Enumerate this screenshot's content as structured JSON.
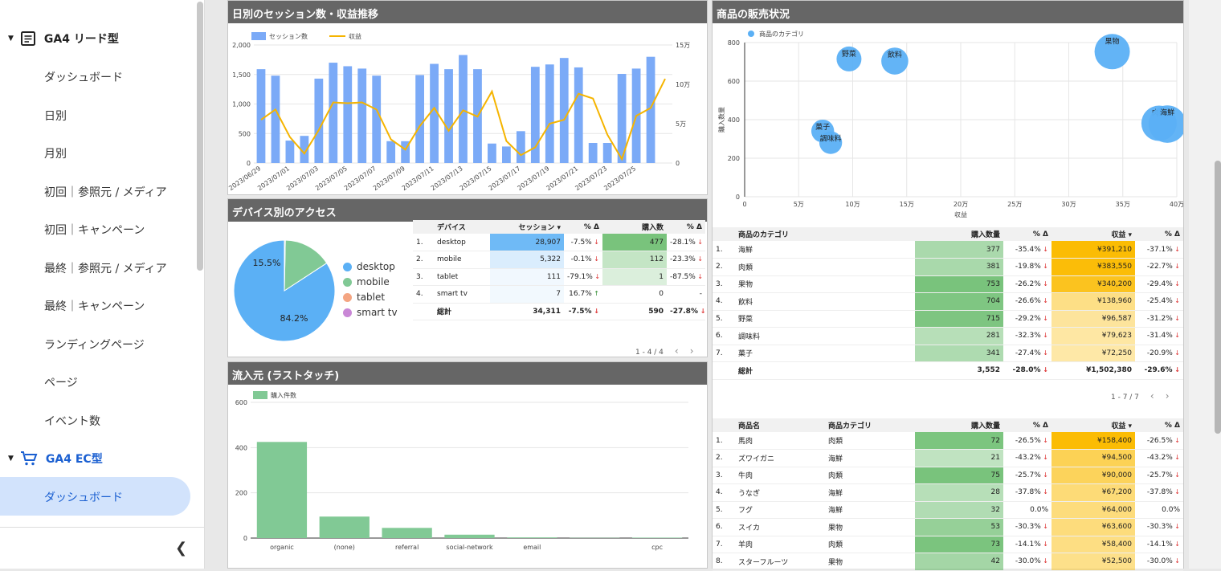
{
  "sidebar": {
    "group1": "GA4 リード型",
    "group1_items": [
      "ダッシュボード",
      "日別",
      "月別",
      "初回｜参照元 / メディア",
      "初回｜キャンペーン",
      "最終｜参照元 / メディア",
      "最終｜キャンペーン",
      "ランディングページ",
      "ページ",
      "イベント数"
    ],
    "group2": "GA4 EC型",
    "group2_items": [
      "ダッシュボード"
    ],
    "collapse_icon": "chevron-left-icon"
  },
  "colors": {
    "bar": "#7baaf7",
    "line": "#f5b400",
    "green": "#81c995",
    "blue": "#5bb0f5",
    "accent": "#1a5fd1",
    "highlight": "#d2e3fc"
  },
  "panel_daily": {
    "title": "日別のセッション数・収益推移"
  },
  "panel_device": {
    "title": "デバイス別のアクセス"
  },
  "panel_source": {
    "title": "流入元 (ラストタッチ)"
  },
  "panel_products": {
    "title": "商品の販売状況"
  },
  "chart_data": [
    {
      "type": "bar+line",
      "title": "日別のセッション数・収益推移",
      "x": [
        "2023/06/29",
        "2023/06/30",
        "2023/07/01",
        "2023/07/02",
        "2023/07/03",
        "2023/07/04",
        "2023/07/05",
        "2023/07/06",
        "2023/07/07",
        "2023/07/08",
        "2023/07/09",
        "2023/07/10",
        "2023/07/11",
        "2023/07/12",
        "2023/07/13",
        "2023/07/14",
        "2023/07/15",
        "2023/07/16",
        "2023/07/17",
        "2023/07/18",
        "2023/07/19",
        "2023/07/20",
        "2023/07/21",
        "2023/07/22",
        "2023/07/23",
        "2023/07/24",
        "2023/07/25",
        "2023/07/26",
        "2023/07/27"
      ],
      "x_tick_labels": [
        "2023/06/29",
        "2023/07/01",
        "2023/07/03",
        "2023/07/05",
        "2023/07/07",
        "2023/07/09",
        "2023/07/11",
        "2023/07/13",
        "2023/07/15",
        "2023/07/17",
        "2023/07/19",
        "2023/07/21",
        "2023/07/23",
        "2023/07/25"
      ],
      "series": [
        {
          "name": "セッション数",
          "type": "bar",
          "axis": "left",
          "values": [
            1590,
            1480,
            380,
            460,
            1430,
            1700,
            1640,
            1600,
            1480,
            370,
            370,
            1490,
            1680,
            1590,
            1830,
            1590,
            330,
            280,
            540,
            1630,
            1670,
            1780,
            1620,
            340,
            340,
            1510,
            1600,
            1800,
            null
          ]
        },
        {
          "name": "収益",
          "type": "line",
          "axis": "right",
          "values": [
            55000,
            68000,
            33000,
            12000,
            42000,
            77000,
            76000,
            77000,
            68000,
            30000,
            17000,
            47000,
            70000,
            41000,
            67000,
            59000,
            91000,
            28000,
            10000,
            20000,
            50000,
            55000,
            88000,
            82000,
            36000,
            5000,
            60000,
            70000,
            107000
          ]
        }
      ],
      "yleft": {
        "ticks": [
          "0",
          "500",
          "1,000",
          "1,500",
          "2,000"
        ],
        "lim": [
          0,
          2000
        ]
      },
      "yright": {
        "ticks": [
          "0",
          "5万",
          "10万",
          "15万"
        ],
        "lim": [
          0,
          150000
        ]
      }
    },
    {
      "type": "pie",
      "title": "デバイス別のアクセス",
      "slices": [
        {
          "label": "desktop",
          "value": 84.2,
          "color": "#5bb0f5"
        },
        {
          "label": "mobile",
          "value": 15.5,
          "color": "#81c995"
        },
        {
          "label": "tablet",
          "value": 0.3,
          "color": "#f4a582"
        },
        {
          "label": "smart tv",
          "value": 0.0,
          "color": "#c987d6"
        }
      ],
      "labels_shown": [
        "84.2%",
        "15.5%"
      ]
    },
    {
      "type": "bar",
      "title": "流入元 (ラストタッチ)",
      "series": [
        {
          "name": "購入件数",
          "values": [
            425,
            95,
            45,
            15,
            3,
            1,
            2
          ]
        }
      ],
      "categories": [
        "organic",
        "(none)",
        "referral",
        "social-network",
        "email",
        "",
        "cpc"
      ],
      "yticks": [
        "0",
        "200",
        "400",
        "600"
      ],
      "ylim": [
        0,
        600
      ]
    },
    {
      "type": "scatter",
      "title": "商品の販売状況",
      "legend": "商品のカテゴリ",
      "xlabel": "収益",
      "ylabel": "購入数量",
      "xticks": [
        "0",
        "5万",
        "10万",
        "15万",
        "20万",
        "25万",
        "30万",
        "35万",
        "40万"
      ],
      "xlim": [
        0,
        400000
      ],
      "yticks": [
        "0",
        "200",
        "400",
        "600",
        "800"
      ],
      "ylim": [
        0,
        800
      ],
      "points": [
        {
          "label": "野菜",
          "x": 96587,
          "y": 715,
          "size": 0.5
        },
        {
          "label": "飲料",
          "x": 138960,
          "y": 704,
          "size": 0.6
        },
        {
          "label": "果物",
          "x": 340200,
          "y": 753,
          "size": 1.0
        },
        {
          "label": "菓子",
          "x": 72250,
          "y": 341,
          "size": 0.4
        },
        {
          "label": "調味料",
          "x": 79623,
          "y": 281,
          "size": 0.4
        },
        {
          "label": "肉類",
          "x": 383550,
          "y": 381,
          "size": 1.0
        },
        {
          "label": "海鮮",
          "x": 391210,
          "y": 377,
          "size": 1.1
        }
      ]
    }
  ],
  "device_table": {
    "headers": [
      "デバイス",
      "セッション ▾",
      "% Δ",
      "購入数",
      "% Δ"
    ],
    "rows": [
      {
        "n": "1.",
        "device": "desktop",
        "sessions": "28,907",
        "s_delta": "-7.5%",
        "s_dir": "down",
        "purchases": "477",
        "p_delta": "-28.1%",
        "p_dir": "down"
      },
      {
        "n": "2.",
        "device": "mobile",
        "sessions": "5,322",
        "s_delta": "-0.1%",
        "s_dir": "down",
        "purchases": "112",
        "p_delta": "-23.3%",
        "p_dir": "down"
      },
      {
        "n": "3.",
        "device": "tablet",
        "sessions": "111",
        "s_delta": "-79.1%",
        "s_dir": "down",
        "purchases": "1",
        "p_delta": "-87.5%",
        "p_dir": "down"
      },
      {
        "n": "4.",
        "device": "smart tv",
        "sessions": "7",
        "s_delta": "16.7%",
        "s_dir": "up",
        "purchases": "0",
        "p_delta": "-",
        "p_dir": "none"
      }
    ],
    "total": {
      "label": "総計",
      "sessions": "34,311",
      "s_delta": "-7.5%",
      "purchases": "590",
      "p_delta": "-27.8%"
    },
    "pager": "1 - 4 / 4"
  },
  "category_table": {
    "headers": [
      "商品のカテゴリ",
      "購入数量",
      "% Δ",
      "収益 ▾",
      "% Δ"
    ],
    "rows": [
      {
        "n": "1.",
        "cat": "海鮮",
        "qty": "377",
        "q_delta": "-35.4%",
        "rev": "¥391,210",
        "r_delta": "-37.1%"
      },
      {
        "n": "2.",
        "cat": "肉類",
        "qty": "381",
        "q_delta": "-19.8%",
        "rev": "¥383,550",
        "r_delta": "-22.7%"
      },
      {
        "n": "3.",
        "cat": "果物",
        "qty": "753",
        "q_delta": "-26.2%",
        "rev": "¥340,200",
        "r_delta": "-29.4%"
      },
      {
        "n": "4.",
        "cat": "飲料",
        "qty": "704",
        "q_delta": "-26.6%",
        "rev": "¥138,960",
        "r_delta": "-25.4%"
      },
      {
        "n": "5.",
        "cat": "野菜",
        "qty": "715",
        "q_delta": "-29.2%",
        "rev": "¥96,587",
        "r_delta": "-31.2%"
      },
      {
        "n": "6.",
        "cat": "調味料",
        "qty": "281",
        "q_delta": "-32.3%",
        "rev": "¥79,623",
        "r_delta": "-31.4%"
      },
      {
        "n": "7.",
        "cat": "菓子",
        "qty": "341",
        "q_delta": "-27.4%",
        "rev": "¥72,250",
        "r_delta": "-20.9%"
      }
    ],
    "total": {
      "label": "総計",
      "qty": "3,552",
      "q_delta": "-28.0%",
      "rev": "¥1,502,380",
      "r_delta": "-29.6%"
    },
    "pager": "1 - 7 / 7"
  },
  "product_table": {
    "headers": [
      "商品名",
      "商品カテゴリ",
      "購入数量",
      "% Δ",
      "収益 ▾",
      "% Δ"
    ],
    "rows": [
      {
        "n": "1.",
        "name": "馬肉",
        "cat": "肉類",
        "qty": "72",
        "q_delta": "-26.5%",
        "q_dir": "down",
        "rev": "¥158,400",
        "r_delta": "-26.5%",
        "r_dir": "down"
      },
      {
        "n": "2.",
        "name": "ズワイガニ",
        "cat": "海鮮",
        "qty": "21",
        "q_delta": "-43.2%",
        "q_dir": "down",
        "rev": "¥94,500",
        "r_delta": "-43.2%",
        "r_dir": "down"
      },
      {
        "n": "3.",
        "name": "牛肉",
        "cat": "肉類",
        "qty": "75",
        "q_delta": "-25.7%",
        "q_dir": "down",
        "rev": "¥90,000",
        "r_delta": "-25.7%",
        "r_dir": "down"
      },
      {
        "n": "4.",
        "name": "うなぎ",
        "cat": "海鮮",
        "qty": "28",
        "q_delta": "-37.8%",
        "q_dir": "down",
        "rev": "¥67,200",
        "r_delta": "-37.8%",
        "r_dir": "down"
      },
      {
        "n": "5.",
        "name": "フグ",
        "cat": "海鮮",
        "qty": "32",
        "q_delta": "0.0%",
        "q_dir": "none",
        "rev": "¥64,000",
        "r_delta": "0.0%",
        "r_dir": "none"
      },
      {
        "n": "6.",
        "name": "スイカ",
        "cat": "果物",
        "qty": "53",
        "q_delta": "-30.3%",
        "q_dir": "down",
        "rev": "¥63,600",
        "r_delta": "-30.3%",
        "r_dir": "down"
      },
      {
        "n": "7.",
        "name": "羊肉",
        "cat": "肉類",
        "qty": "73",
        "q_delta": "-14.1%",
        "q_dir": "down",
        "rev": "¥58,400",
        "r_delta": "-14.1%",
        "r_dir": "down"
      },
      {
        "n": "8.",
        "name": "スターフルーツ",
        "cat": "果物",
        "qty": "42",
        "q_delta": "-30.0%",
        "q_dir": "down",
        "rev": "¥52,500",
        "r_delta": "-30.0%",
        "r_dir": "down"
      }
    ]
  }
}
